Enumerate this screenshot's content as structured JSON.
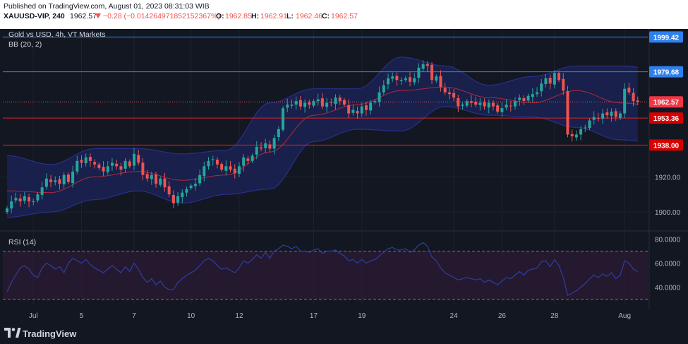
{
  "header": {
    "published": "Published on TradingView.com, August 01, 2023 08:31:03 WIB",
    "symbol": "XAUUSD-VIP, 240",
    "last": "1962.57",
    "change": "−0.28 (−0.014264971852152367%)",
    "o_label": "O:",
    "o": "1962.85",
    "h_label": "H:",
    "h": "1962.91",
    "l_label": "L:",
    "l": "1962.46",
    "c_label": "C:",
    "c": "1962.57"
  },
  "legend": {
    "main": "Gold vs USD, 4h, VT Markets",
    "bb": "BB (20, 2)",
    "rsi": "RSI (14)"
  },
  "footer": {
    "brand": "TradingView"
  },
  "colors": {
    "bg": "#131722",
    "grid": "#1e222d",
    "up": "#26a69a",
    "down": "#ef5350",
    "bb_fill": "#1a2150",
    "bb_band": "#2a2f8a",
    "bb_basis": "#b2283d",
    "blue_line": "#3d86d8",
    "red_line": "#e0202a",
    "rsi_line": "#2f3e9e",
    "rsi_fill": "#2a1a33"
  },
  "chart_data": [
    {
      "type": "candlestick",
      "title": "Gold vs USD, 4h, VT Markets",
      "x_ticks": [
        "Jul",
        "5",
        "7",
        "10",
        "12",
        "17",
        "19",
        "24",
        "26",
        "28",
        "Aug"
      ],
      "y_ticks": [
        1900.0,
        1920.0
      ],
      "ylim": [
        1890,
        2004
      ],
      "price_lines": [
        {
          "value": 1999.42,
          "label": "1999.42",
          "color": "#3d86d8"
        },
        {
          "value": 1979.68,
          "label": "1979.68",
          "color": "#3d86d8"
        },
        {
          "value": 1962.57,
          "label": "1962.57",
          "color": "#ef5350",
          "style": "dotted"
        },
        {
          "value": 1953.36,
          "label": "1953.36",
          "color": "#e0202a"
        },
        {
          "value": 1938.0,
          "label": "1938.00",
          "color": "#e0202a"
        }
      ],
      "close": [
        1902,
        1906,
        1908,
        1906,
        1909,
        1906,
        1906,
        1910,
        1914,
        1919,
        1917,
        1918,
        1916,
        1921,
        1917,
        1923,
        1929,
        1928,
        1931,
        1929,
        1927,
        1925,
        1923,
        1926,
        1928,
        1926,
        1924,
        1929,
        1926,
        1933,
        1928,
        1921,
        1919,
        1921,
        1916,
        1919,
        1914,
        1910,
        1905,
        1909,
        1911,
        1913,
        1915,
        1916,
        1921,
        1926,
        1929,
        1930,
        1927,
        1924,
        1926,
        1924,
        1922,
        1926,
        1931,
        1929,
        1932,
        1937,
        1936,
        1939,
        1936,
        1942,
        1947,
        1959,
        1961,
        1961,
        1963,
        1960,
        1962,
        1961,
        1963,
        1964,
        1960,
        1962,
        1962,
        1965,
        1963,
        1961,
        1956,
        1958,
        1956,
        1960,
        1958,
        1962,
        1963,
        1968,
        1972,
        1976,
        1977,
        1975,
        1975,
        1976,
        1974,
        1976,
        1982,
        1984,
        1983,
        1975,
        1977,
        1971,
        1968,
        1967,
        1965,
        1960,
        1961,
        1963,
        1962,
        1961,
        1962,
        1960,
        1962,
        1960,
        1957,
        1959,
        1961,
        1960,
        1963,
        1965,
        1963,
        1966,
        1967,
        1968,
        1973,
        1976,
        1973,
        1979,
        1975,
        1969,
        1944,
        1943,
        1944,
        1947,
        1948,
        1952,
        1954,
        1953,
        1956,
        1955,
        1957,
        1954,
        1956,
        1970,
        1968,
        1963,
        1962.57
      ],
      "bb_upper_anchor": [
        [
          0,
          1932
        ],
        [
          10,
          1927
        ],
        [
          20,
          1936
        ],
        [
          30,
          1936
        ],
        [
          40,
          1933
        ],
        [
          50,
          1935
        ],
        [
          60,
          1962
        ],
        [
          70,
          1970
        ],
        [
          80,
          1970
        ],
        [
          90,
          1988
        ],
        [
          100,
          1983
        ],
        [
          110,
          1972
        ],
        [
          120,
          1977
        ],
        [
          130,
          1983
        ],
        [
          140,
          1983
        ],
        [
          146,
          1982
        ]
      ],
      "bb_basis_anchor": [
        [
          0,
          1912
        ],
        [
          10,
          1911
        ],
        [
          20,
          1920
        ],
        [
          30,
          1923
        ],
        [
          40,
          1918
        ],
        [
          50,
          1921
        ],
        [
          60,
          1934
        ],
        [
          70,
          1955
        ],
        [
          80,
          1961
        ],
        [
          90,
          1969
        ],
        [
          100,
          1971
        ],
        [
          110,
          1965
        ],
        [
          120,
          1962
        ],
        [
          130,
          1969
        ],
        [
          140,
          1962
        ],
        [
          146,
          1961
        ]
      ],
      "bb_lower_anchor": [
        [
          0,
          1897
        ],
        [
          10,
          1900
        ],
        [
          20,
          1907
        ],
        [
          30,
          1912
        ],
        [
          40,
          1905
        ],
        [
          50,
          1910
        ],
        [
          60,
          1913
        ],
        [
          70,
          1940
        ],
        [
          80,
          1947
        ],
        [
          90,
          1946
        ],
        [
          100,
          1960
        ],
        [
          110,
          1955
        ],
        [
          120,
          1954
        ],
        [
          130,
          1948
        ],
        [
          140,
          1941
        ],
        [
          146,
          1940
        ]
      ]
    },
    {
      "type": "line",
      "title": "RSI (14)",
      "y_ticks": [
        80.0,
        60.0,
        40.0
      ],
      "tick_labels": [
        "80.0000",
        "60.0000",
        "40.0000"
      ],
      "ylim": [
        25,
        85
      ],
      "levels": [
        70,
        30
      ],
      "values": [
        36,
        44,
        50,
        56,
        58,
        55,
        50,
        48,
        56,
        60,
        58,
        55,
        57,
        52,
        60,
        64,
        62,
        60,
        63,
        59,
        56,
        54,
        52,
        55,
        58,
        55,
        52,
        57,
        53,
        60,
        55,
        48,
        44,
        47,
        42,
        45,
        40,
        38,
        38,
        44,
        47,
        50,
        52,
        54,
        58,
        62,
        64,
        62,
        58,
        55,
        56,
        54,
        52,
        56,
        62,
        60,
        63,
        67,
        64,
        69,
        64,
        70,
        72,
        75,
        74,
        72,
        74,
        70,
        70,
        69,
        71,
        72,
        68,
        70,
        70,
        71,
        68,
        66,
        62,
        63,
        60,
        63,
        60,
        62,
        63,
        66,
        69,
        72,
        73,
        71,
        71,
        72,
        69,
        71,
        75,
        77,
        74,
        65,
        62,
        56,
        52,
        50,
        48,
        46,
        47,
        48,
        47,
        46,
        47,
        44,
        46,
        44,
        42,
        45,
        48,
        47,
        50,
        53,
        50,
        54,
        55,
        56,
        61,
        62,
        57,
        63,
        58,
        48,
        33,
        35,
        37,
        40,
        43,
        47,
        50,
        48,
        51,
        49,
        52,
        47,
        50,
        62,
        60,
        55,
        53
      ]
    }
  ]
}
